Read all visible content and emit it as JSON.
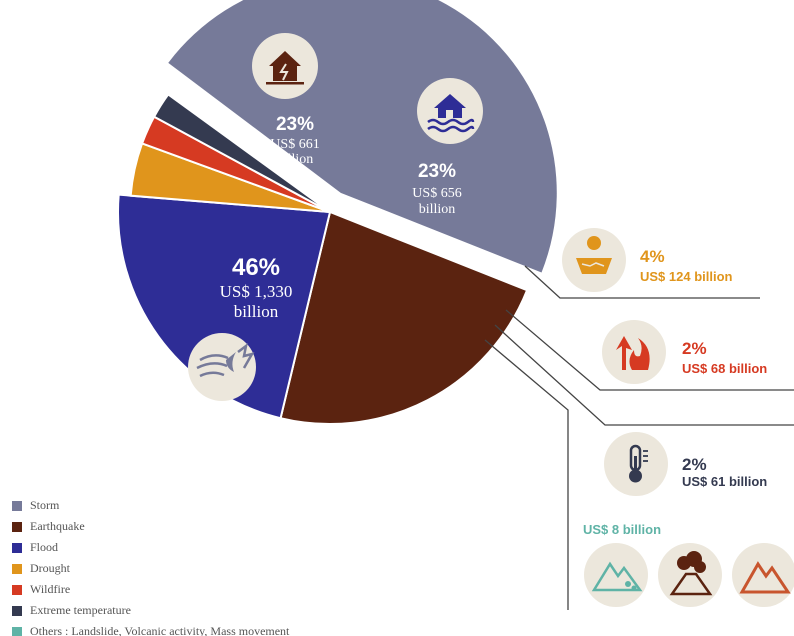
{
  "chart_data": {
    "type": "pie",
    "slices": [
      {
        "label": "Storm",
        "percent": 46,
        "amount": "US$ 1,330 billion",
        "amount_line1": "US$ 1,330",
        "amount_line2": "billion",
        "value_billion": 1330,
        "color": "#767a99",
        "icon": "storm-icon"
      },
      {
        "label": "Earthquake",
        "percent": 23,
        "amount": "US$ 661 billion",
        "amount_line1": "US$ 661",
        "amount_line2": "billion",
        "value_billion": 661,
        "color": "#5b2310",
        "icon": "earthquake-house-icon"
      },
      {
        "label": "Flood",
        "percent": 23,
        "amount": "US$ 656 billion",
        "amount_line1": "US$ 656",
        "amount_line2": "billion",
        "value_billion": 656,
        "color": "#2e2d96",
        "icon": "flood-house-icon"
      },
      {
        "label": "Drought",
        "percent": 4,
        "amount": "US$ 124 billion",
        "value_billion": 124,
        "color": "#e0951c",
        "icon": "drought-sun-icon"
      },
      {
        "label": "Wildfire",
        "percent": 2,
        "amount": "US$ 68 billion",
        "value_billion": 68,
        "color": "#d63a22",
        "icon": "wildfire-icon"
      },
      {
        "label": "Extreme temperature",
        "percent": 2,
        "amount": "US$ 61 billion",
        "value_billion": 61,
        "color": "#343a50",
        "icon": "thermometer-icon"
      },
      {
        "label": "Others : Landslide, Volcanic activity, Mass movement",
        "percent": null,
        "amount": "US$ 8 billion",
        "value_billion": 8,
        "color": "#5fb3a6",
        "icon": "landslide-icon"
      }
    ],
    "labels": {
      "storm_pct": "46%",
      "earthquake_pct": "23%",
      "flood_pct": "23%",
      "drought_pct": "4%",
      "wildfire_pct": "2%",
      "extreme_pct": "2%"
    },
    "others_amount": "US$ 8 billion"
  }
}
